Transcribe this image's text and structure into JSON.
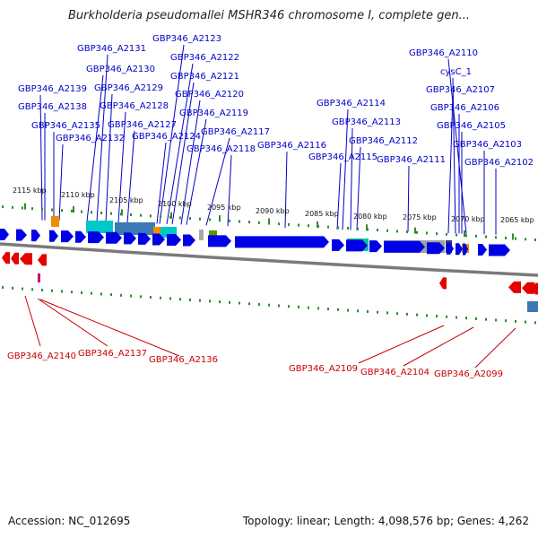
{
  "title": "Burkholderia pseudomallei MSHR346 chromosome I, complete gen...",
  "footer": {
    "accession": "Accession: NC_012695",
    "info": "Topology: linear; Length: 4,098,576 bp; Genes: 4,262"
  },
  "scale_ticks": [
    "2115 kbp",
    "2110 kbp",
    "2105 kbp",
    "2100 kbp",
    "2095 kbp",
    "2090 kbp",
    "2085 kbp",
    "2080 kbp",
    "2075 kbp",
    "2070 kbp",
    "2065 kbp"
  ],
  "top_labels": [
    "GBP346_A2123",
    "GBP346_A2131",
    "GBP346_A2122",
    "GBP346_A2130",
    "GBP346_A2121",
    "GBP346_A2139",
    "GBP346_A2129",
    "GBP346_A2120",
    "GBP346_A2138",
    "GBP346_A2128",
    "GBP346_A2119",
    "GBP346_A2135",
    "GBP346_A2127",
    "GBP346_A2117",
    "GBP346_A2132",
    "GBP346_A2124",
    "GBP346_A2118",
    "GBP346_A2116",
    "GBP346_A2110",
    "cysC_1",
    "GBP346_A2107",
    "GBP346_A2114",
    "GBP346_A2106",
    "GBP346_A2113",
    "GBP346_A2105",
    "GBP346_A2112",
    "GBP346_A2103",
    "GBP346_A2115",
    "GBP346_A2111",
    "GBP346_A2102"
  ],
  "bottom_labels": [
    "GBP346_A2140",
    "GBP346_A2137",
    "GBP346_A2136",
    "GBP346_A2109",
    "GBP346_A2104",
    "GBP346_A2099"
  ],
  "colors": {
    "top_label": "#0000c8",
    "bottom_label": "#c80000",
    "forward_gene": "#0000e6",
    "reverse_gene": "#e60000",
    "tick": "#2e8b2e"
  }
}
